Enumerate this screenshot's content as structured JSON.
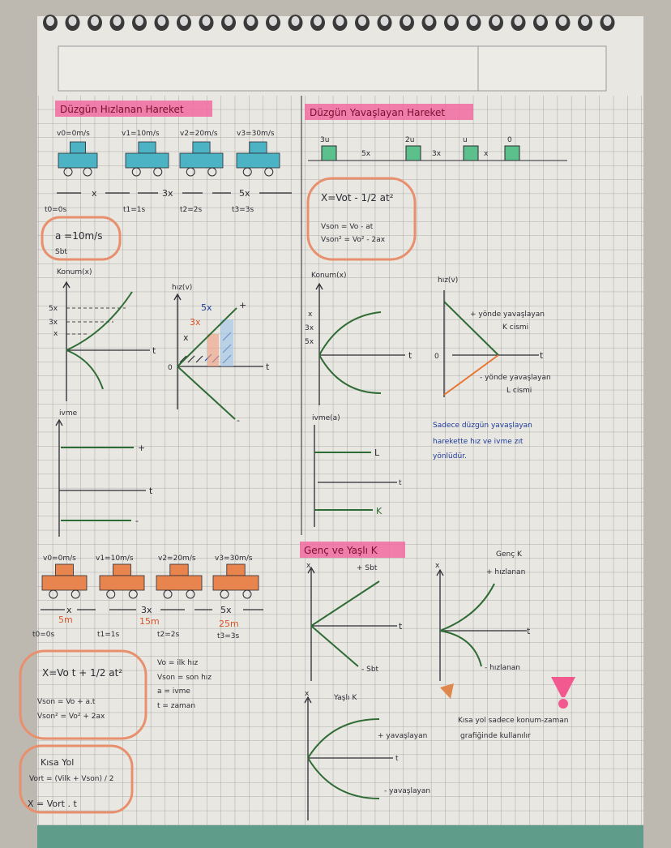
{
  "colors": {
    "paper": "#e8e7e2",
    "grid": "#9a9a9a",
    "highlight": "#f26aa0",
    "teal_car": "#4bb3c4",
    "orange_car": "#e8844e",
    "green_box": "#5cc08c",
    "curve": "#2f6b34",
    "note_blue": "#1e3b9a",
    "cloud": "#e8906e"
  },
  "left": {
    "title": "Düzgün Hızlanan Hareket",
    "velocities": [
      "v0=0m/s",
      "v1=10m/s",
      "v2=20m/s",
      "v3=30m/s"
    ],
    "distances": [
      "x",
      "3x",
      "5x"
    ],
    "times": [
      "t0=0s",
      "t1=1s",
      "t2=2s",
      "t3=3s"
    ],
    "accel": "a =10m/s",
    "accel_note": "Sbt",
    "konum": {
      "label": "Konum(x)",
      "ticks": [
        "5x",
        "3x",
        "x"
      ],
      "t": "t"
    },
    "hiz": {
      "label": "hız(v)",
      "areas": [
        "x",
        "3x",
        "5x"
      ],
      "zero": "0",
      "t": "t",
      "plus": "+",
      "minus": "-"
    },
    "ivme": {
      "label": "ivme",
      "plus": "+",
      "t": "t",
      "minus": "-"
    }
  },
  "right": {
    "title": "Düzgün Yavaşlayan Hareket",
    "speeds": [
      "3u",
      "2u",
      "u",
      "0"
    ],
    "gaps": [
      "5x",
      "3x",
      "x"
    ],
    "formulas": [
      "X=Vot - 1/2 at²",
      "Vson = Vo - at",
      "Vson² = Vo² - 2ax"
    ],
    "konum": {
      "label": "Konum(x)",
      "ticks": [
        "x",
        "3x",
        "5x"
      ],
      "t": "t"
    },
    "hiz": {
      "label": "hız(v)",
      "zero": "0",
      "t": "t",
      "k_line1": "+ yönde yavaşlayan",
      "k_line2": "K cismi",
      "l_line1": "- yönde yavaşlayan",
      "l_line2": "L cismi"
    },
    "ivme": {
      "label": "ivme(a)",
      "l": "L",
      "t": "t",
      "k": "K"
    },
    "note": [
      "Sadece düzgün yavaşlayan",
      "harekette hız ve ivme zıt",
      "yönlüdür."
    ]
  },
  "bottom_left": {
    "velocities": [
      "v0=0m/s",
      "v1=10m/s",
      "v2=20m/s",
      "v3=30m/s"
    ],
    "distances": [
      "x",
      "3x",
      "5x"
    ],
    "meters": [
      "5m",
      "15m",
      "25m"
    ],
    "times": [
      "t0=0s",
      "t1=1s",
      "t2=2s",
      "t3=3s"
    ],
    "formulas": [
      "X=Vo t + 1/2 at²",
      "Vson = Vo + a.t",
      "Vson² = Vo² + 2ax"
    ],
    "legend": [
      "Vo = ilk hız",
      "Vson = son hız",
      "a = ivme",
      "t = zaman"
    ],
    "shortcut": {
      "title": "Kısa Yol",
      "vort": "Vort = (Vilk + Vson) / 2",
      "x": "X = Vort . t"
    }
  },
  "bottom_right": {
    "title": "Genç ve Yaşlı K",
    "g1": {
      "x": "x",
      "t": "t",
      "plus": "+ Sbt",
      "minus": "- Sbt"
    },
    "g2": {
      "title": "Genç K",
      "x": "x",
      "t": "t",
      "plus": "+ hızlanan",
      "minus": "- hızlanan"
    },
    "g3": {
      "title": "Yaşlı K",
      "x": "x",
      "t": "t",
      "plus": "+ yavaşlayan",
      "minus": "- yavaşlayan"
    },
    "note": [
      "Kısa yol sadece konum-zaman",
      "grafiğinde kullanılır"
    ]
  }
}
